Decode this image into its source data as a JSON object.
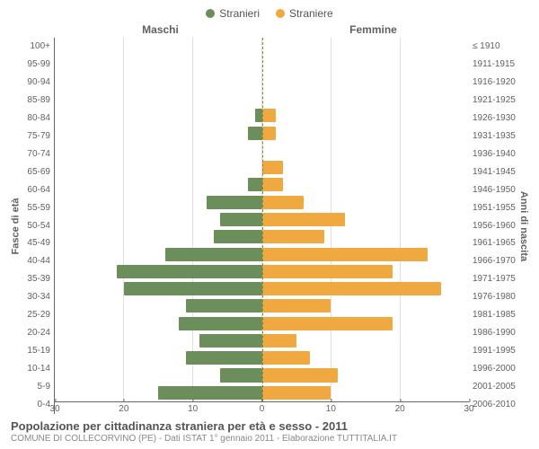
{
  "chart": {
    "type": "population-pyramid",
    "legend": [
      {
        "label": "Stranieri",
        "color": "#6b8e5a"
      },
      {
        "label": "Straniere",
        "color": "#f0a840"
      }
    ],
    "header_left": "Maschi",
    "header_right": "Femmine",
    "ylabel_left": "Fasce di età",
    "ylabel_right": "Anni di nascita",
    "age_labels": [
      "100+",
      "95-99",
      "90-94",
      "85-89",
      "80-84",
      "75-79",
      "70-74",
      "65-69",
      "60-64",
      "55-59",
      "50-54",
      "45-49",
      "40-44",
      "35-39",
      "30-34",
      "25-29",
      "20-24",
      "15-19",
      "10-14",
      "5-9",
      "0-4"
    ],
    "birth_labels": [
      "≤ 1910",
      "1911-1915",
      "1916-1920",
      "1921-1925",
      "1926-1930",
      "1931-1935",
      "1936-1940",
      "1941-1945",
      "1946-1950",
      "1951-1955",
      "1956-1960",
      "1961-1965",
      "1966-1970",
      "1971-1975",
      "1976-1980",
      "1981-1985",
      "1986-1990",
      "1991-1995",
      "1996-2000",
      "2001-2005",
      "2006-2010"
    ],
    "male_values": [
      0,
      0,
      0,
      0,
      1,
      2,
      0,
      0,
      2,
      8,
      6,
      7,
      14,
      21,
      20,
      11,
      12,
      9,
      11,
      6,
      15
    ],
    "female_values": [
      0,
      0,
      0,
      0,
      2,
      2,
      0,
      3,
      3,
      6,
      12,
      9,
      24,
      19,
      26,
      10,
      19,
      5,
      7,
      11,
      10
    ],
    "male_color": "#6b8e5a",
    "female_color": "#f0a840",
    "xmax": 30,
    "xticks": [
      30,
      20,
      10,
      0,
      10,
      20,
      30
    ],
    "grid_color": "#e0e0e0",
    "axis_color": "#666666",
    "background_color": "#ffffff",
    "age_fontsize": 10,
    "label_fontsize": 11
  },
  "footer": {
    "title": "Popolazione per cittadinanza straniera per età e sesso - 2011",
    "subtitle": "COMUNE DI COLLECORVINO (PE) - Dati ISTAT 1° gennaio 2011 - Elaborazione TUTTITALIA.IT"
  }
}
